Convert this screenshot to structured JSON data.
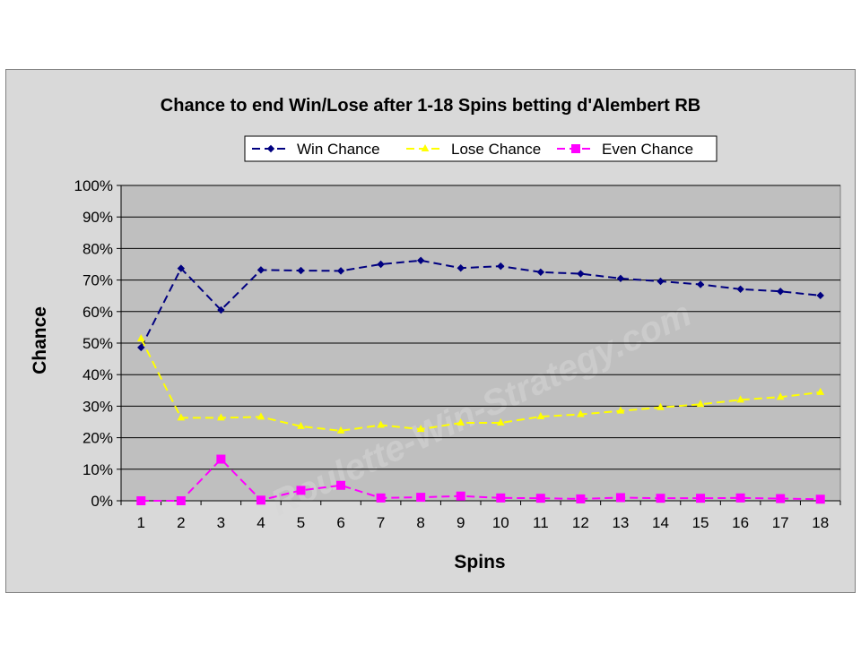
{
  "chart_data": {
    "type": "line",
    "title": "Chance to end Win/Lose after 1-18 Spins betting d'Alembert RB",
    "xlabel": "Spins",
    "ylabel": "Chance",
    "categories": [
      "1",
      "2",
      "3",
      "4",
      "5",
      "6",
      "7",
      "8",
      "9",
      "10",
      "11",
      "12",
      "13",
      "14",
      "15",
      "16",
      "17",
      "18"
    ],
    "ylim": [
      0,
      100
    ],
    "y_ticks": [
      "0%",
      "10%",
      "20%",
      "30%",
      "40%",
      "50%",
      "60%",
      "70%",
      "80%",
      "90%",
      "100%"
    ],
    "grid": "horizontal",
    "legend_position": "top",
    "watermark": "Roulette-Win-Strategy.com",
    "series": [
      {
        "name": "Win Chance",
        "color": "#000080",
        "marker": "diamond",
        "values": [
          48.6,
          73.7,
          60.5,
          73.2,
          73.0,
          72.9,
          75.0,
          76.2,
          73.8,
          74.4,
          72.5,
          72.0,
          70.5,
          69.6,
          68.6,
          67.1,
          66.4,
          65.1
        ]
      },
      {
        "name": "Lose Chance",
        "color": "#ffff00",
        "marker": "triangle",
        "values": [
          51.4,
          26.3,
          26.3,
          26.6,
          23.6,
          22.2,
          24.0,
          22.7,
          24.7,
          24.7,
          26.7,
          27.4,
          28.5,
          29.6,
          30.6,
          32.0,
          32.9,
          34.4
        ]
      },
      {
        "name": "Even Chance",
        "color": "#ff00ff",
        "marker": "square",
        "values": [
          0.0,
          0.0,
          13.2,
          0.2,
          3.3,
          4.9,
          0.9,
          1.1,
          1.5,
          0.9,
          0.8,
          0.6,
          1.0,
          0.8,
          0.8,
          0.9,
          0.7,
          0.5
        ]
      }
    ]
  }
}
